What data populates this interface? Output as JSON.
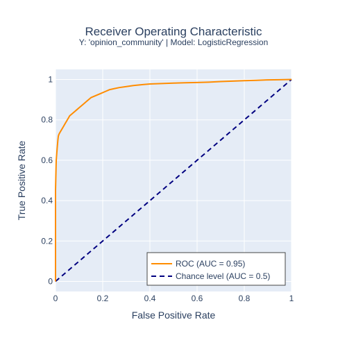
{
  "chart_data": {
    "type": "line",
    "title": "Receiver Operating Characteristic",
    "subtitle": "Y: 'opinion_community' | Model: LogisticRegression",
    "xlabel": "False Positive Rate",
    "ylabel": "True Positive Rate",
    "xlim": [
      0,
      1
    ],
    "ylim": [
      -0.05,
      1.05
    ],
    "x_ticks": [
      0,
      0.2,
      0.4,
      0.6,
      0.8,
      1
    ],
    "x_tick_labels": [
      "0",
      "0.2",
      "0.4",
      "0.6",
      "0.8",
      "1"
    ],
    "y_ticks": [
      0,
      0.2,
      0.4,
      0.6,
      0.8,
      1
    ],
    "y_tick_labels": [
      "0",
      "0.2",
      "0.4",
      "0.6",
      "0.8",
      "1"
    ],
    "grid": true,
    "legend_position": "bottom-right",
    "series": [
      {
        "name": "ROC (AUC = 0.95)",
        "color": "#ff8c00",
        "dash": "solid",
        "x": [
          0,
          0,
          0.002,
          0.003,
          0.005,
          0.007,
          0.01,
          0.012,
          0.015,
          0.02,
          0.025,
          0.03,
          0.035,
          0.04,
          0.045,
          0.05,
          0.055,
          0.06,
          0.07,
          0.08,
          0.09,
          0.1,
          0.11,
          0.12,
          0.13,
          0.14,
          0.15,
          0.17,
          0.19,
          0.21,
          0.23,
          0.25,
          0.27,
          0.3,
          0.33,
          0.37,
          0.4,
          0.45,
          0.5,
          0.55,
          0.6,
          0.65,
          0.7,
          0.75,
          0.8,
          0.85,
          0.9,
          0.95,
          1.0
        ],
        "y": [
          0,
          0.45,
          0.55,
          0.6,
          0.63,
          0.66,
          0.7,
          0.72,
          0.73,
          0.74,
          0.75,
          0.76,
          0.77,
          0.78,
          0.79,
          0.8,
          0.81,
          0.82,
          0.83,
          0.84,
          0.85,
          0.86,
          0.87,
          0.88,
          0.89,
          0.9,
          0.91,
          0.92,
          0.93,
          0.94,
          0.95,
          0.955,
          0.96,
          0.965,
          0.97,
          0.975,
          0.978,
          0.98,
          0.982,
          0.984,
          0.985,
          0.987,
          0.99,
          0.992,
          0.994,
          0.996,
          0.998,
          0.999,
          1.0
        ]
      },
      {
        "name": "Chance level (AUC = 0.5)",
        "color": "#000080",
        "dash": "dash",
        "x": [
          0,
          1
        ],
        "y": [
          0,
          1
        ]
      }
    ]
  },
  "colors": {
    "plot_background": "#e5ecf6",
    "grid": "#ffffff",
    "text": "#2a3f5f"
  }
}
